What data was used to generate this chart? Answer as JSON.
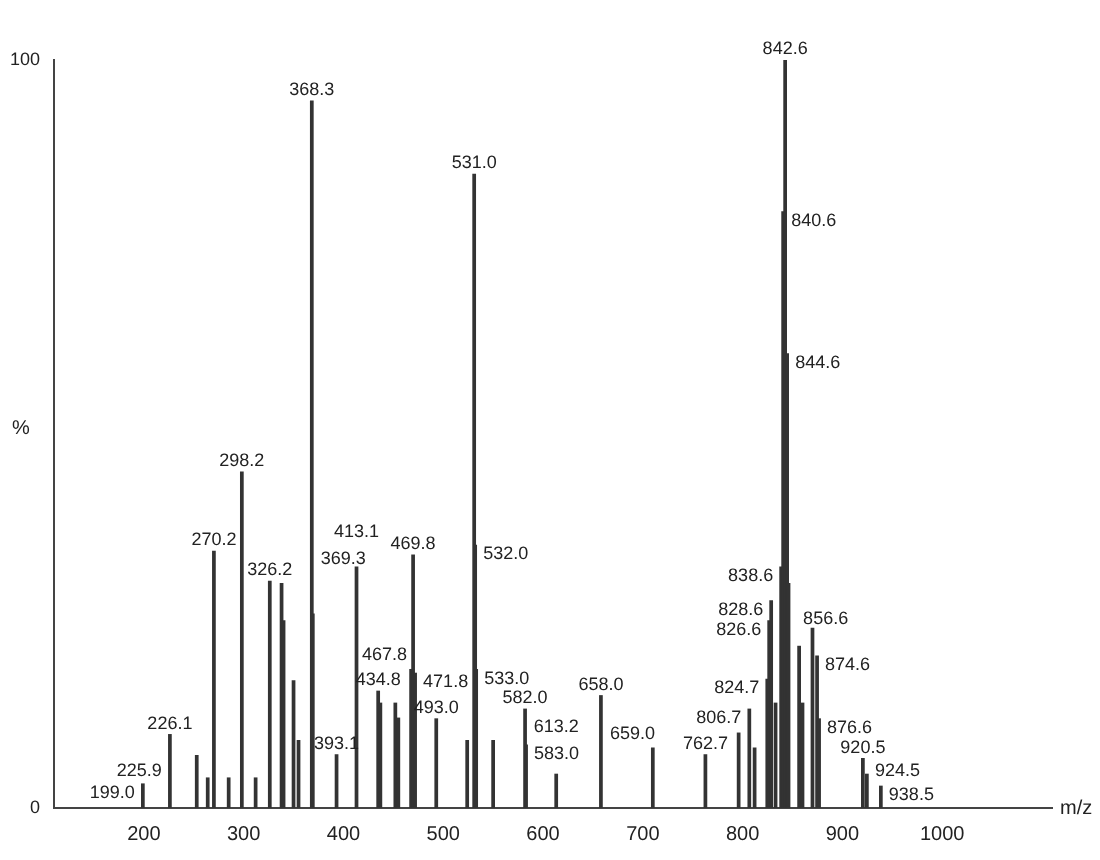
{
  "chart_data": {
    "type": "bar",
    "xlabel": "m/z",
    "ylabel": "%",
    "color": "#333333",
    "legend": false,
    "grid": false,
    "x": [
      199.0,
      226.1,
      253,
      264,
      270.2,
      285,
      298.2,
      312,
      326.2,
      338,
      340,
      350,
      355,
      368.3,
      369.3,
      393.1,
      413.1,
      434.8,
      437,
      452,
      455,
      467.8,
      469.8,
      471.8,
      493.0,
      524,
      531.0,
      532.0,
      533.0,
      550,
      582.0,
      583.0,
      613.2,
      658.0,
      710,
      762.7,
      796,
      806.7,
      812,
      824.7,
      826.6,
      828.6,
      833,
      838.6,
      840.6,
      842.6,
      844.6,
      846,
      856.6,
      860,
      870,
      874.6,
      876.6,
      920.5,
      924.5,
      938.5
    ],
    "values": [
      3.2,
      9.8,
      7,
      4,
      34.3,
      4,
      44.9,
      4,
      30.3,
      30,
      25,
      17,
      9,
      94.5,
      25.9,
      7.1,
      32.2,
      15.6,
      14,
      14,
      12,
      18.5,
      33.8,
      18,
      11.9,
      9,
      84.7,
      35.1,
      18.5,
      9,
      13.2,
      8.4,
      4.5,
      15.0,
      8,
      7.1,
      10,
      13.2,
      8,
      17.2,
      25,
      27.7,
      14,
      32.2,
      79.7,
      100,
      60.7,
      30,
      21.6,
      14,
      24,
      20.3,
      11.9,
      6.6,
      4.5,
      2.9
    ],
    "xlim": [
      110,
      1110
    ],
    "xticks": [
      200,
      300,
      400,
      500,
      600,
      700,
      800,
      900,
      1000
    ],
    "ylim": [
      0,
      100
    ],
    "yticks": [
      0,
      100
    ],
    "annotations": [
      {
        "text": "199.0",
        "x": 199.0,
        "y": 3.2
      },
      {
        "text": "225.9",
        "x": 225.9,
        "y": 4.5
      },
      {
        "text": "226.1",
        "x": 226.1,
        "y": 9.8
      },
      {
        "text": "270.2",
        "x": 270.2,
        "y": 34.3
      },
      {
        "text": "298.2",
        "x": 298.2,
        "y": 44.9
      },
      {
        "text": "326.2",
        "x": 326.2,
        "y": 30.3
      },
      {
        "text": "368.3",
        "x": 368.3,
        "y": 94.5
      },
      {
        "text": "369.3",
        "x": 369.3,
        "y": 25.9
      },
      {
        "text": "393.1",
        "x": 393.1,
        "y": 7.1
      },
      {
        "text": "413.1",
        "x": 413.1,
        "y": 32.2
      },
      {
        "text": "434.8",
        "x": 434.8,
        "y": 15.6
      },
      {
        "text": "467.8",
        "x": 467.8,
        "y": 18.5
      },
      {
        "text": "469.8",
        "x": 469.8,
        "y": 33.8
      },
      {
        "text": "471.8",
        "x": 471.8,
        "y": 18
      },
      {
        "text": "493.0",
        "x": 493.0,
        "y": 11.9
      },
      {
        "text": "531.0",
        "x": 531.0,
        "y": 84.7
      },
      {
        "text": "532.0",
        "x": 532.0,
        "y": 35.1
      },
      {
        "text": "533.0",
        "x": 533.0,
        "y": 18.5
      },
      {
        "text": "582.0",
        "x": 582.0,
        "y": 13.2
      },
      {
        "text": "583.0",
        "x": 583.0,
        "y": 8.4
      },
      {
        "text": "613.2",
        "x": 613.2,
        "y": 4.5
      },
      {
        "text": "658.0",
        "x": 658.0,
        "y": 15.0
      },
      {
        "text": "659.0",
        "x": 659.0,
        "y": 11.1
      },
      {
        "text": "762.7",
        "x": 762.7,
        "y": 7.1
      },
      {
        "text": "806.7",
        "x": 806.7,
        "y": 13.2
      },
      {
        "text": "824.7",
        "x": 824.7,
        "y": 17.2
      },
      {
        "text": "826.6",
        "x": 826.6,
        "y": 25
      },
      {
        "text": "828.6",
        "x": 828.6,
        "y": 27.7
      },
      {
        "text": "838.6",
        "x": 838.6,
        "y": 32.2
      },
      {
        "text": "840.6",
        "x": 840.6,
        "y": 79.7
      },
      {
        "text": "842.6",
        "x": 842.6,
        "y": 100
      },
      {
        "text": "844.6",
        "x": 844.6,
        "y": 60.7
      },
      {
        "text": "856.6",
        "x": 856.6,
        "y": 21.6
      },
      {
        "text": "874.6",
        "x": 874.6,
        "y": 20.3
      },
      {
        "text": "876.6",
        "x": 876.6,
        "y": 11.9
      },
      {
        "text": "920.5",
        "x": 920.5,
        "y": 6.6
      },
      {
        "text": "924.5",
        "x": 924.5,
        "y": 4.5
      },
      {
        "text": "938.5",
        "x": 938.5,
        "y": 2.9
      }
    ]
  }
}
